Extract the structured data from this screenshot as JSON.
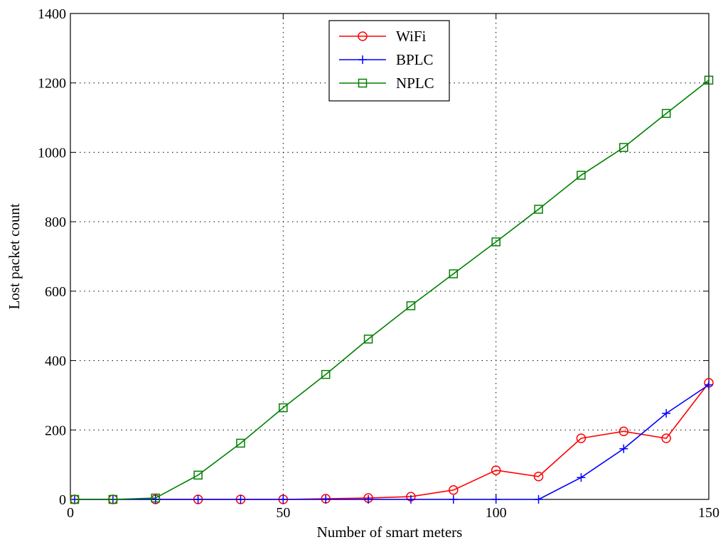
{
  "chart_data": {
    "type": "line",
    "title": "",
    "xlabel": "Number of smart meters",
    "ylabel": "Lost packet count",
    "xlim": [
      0,
      150
    ],
    "ylim": [
      0,
      1400
    ],
    "xticks": [
      0,
      50,
      100,
      150
    ],
    "yticks": [
      0,
      200,
      400,
      600,
      800,
      1000,
      1200,
      1400
    ],
    "grid": true,
    "grid_style": "dotted",
    "legend_position": "top-center",
    "x": [
      1,
      10,
      20,
      30,
      40,
      50,
      60,
      70,
      80,
      90,
      100,
      110,
      120,
      130,
      140,
      150
    ],
    "series": [
      {
        "name": "WiFi",
        "color": "#ff0000",
        "marker": "circle",
        "values": [
          0,
          0,
          0,
          0,
          0,
          0,
          2,
          4,
          8,
          27,
          84,
          66,
          176,
          196,
          176,
          336
        ]
      },
      {
        "name": "BPLC",
        "color": "#0000ff",
        "marker": "plus",
        "values": [
          0,
          0,
          0,
          0,
          0,
          0,
          0,
          0,
          0,
          0,
          0,
          0,
          63,
          146,
          248,
          330
        ]
      },
      {
        "name": "NPLC",
        "color": "#008000",
        "marker": "square",
        "values": [
          0,
          0,
          4,
          70,
          162,
          264,
          360,
          462,
          558,
          650,
          742,
          836,
          934,
          1014,
          1112,
          1208
        ]
      }
    ]
  }
}
